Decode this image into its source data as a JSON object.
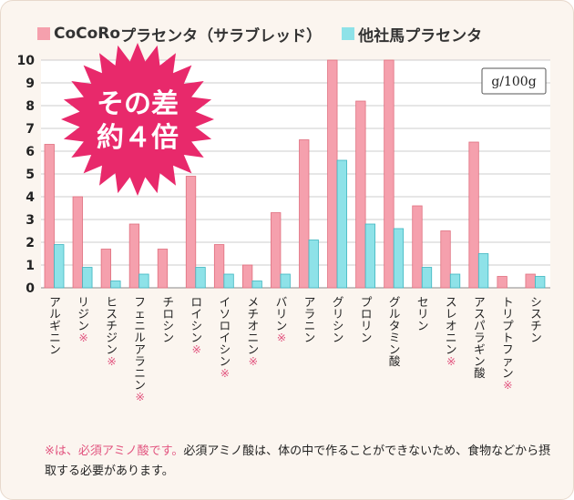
{
  "chart_data": {
    "type": "bar",
    "unit": "g/100g",
    "ylim": [
      0,
      10
    ],
    "yticks": [
      0,
      1,
      2,
      3,
      4,
      5,
      6,
      7,
      8,
      9,
      10
    ],
    "grid": true,
    "legend_position": "top",
    "categories": [
      "アルギニン",
      "リジン",
      "ヒスチジン",
      "フェニルアラニン",
      "チロシン",
      "ロイシン",
      "イソロイシン",
      "メチオニン",
      "バリン",
      "アラニン",
      "グリシン",
      "プロリン",
      "グルタミン酸",
      "セリン",
      "スレオニン",
      "アスパラギン酸",
      "トリプトファン",
      "シスチン"
    ],
    "essential": [
      false,
      true,
      true,
      true,
      false,
      true,
      true,
      true,
      true,
      false,
      false,
      false,
      false,
      false,
      true,
      false,
      true,
      false
    ],
    "series": [
      {
        "name": "CoCoRo プラセンタ（サラブレッド）",
        "color": "#f5a0ad",
        "stroke": "#e0707f",
        "values": [
          6.3,
          4.0,
          1.7,
          2.8,
          1.7,
          4.9,
          1.9,
          1.0,
          3.3,
          6.5,
          10,
          8.2,
          10,
          3.6,
          2.5,
          6.4,
          0.5,
          0.6
        ]
      },
      {
        "name": "他社馬プラセンタ",
        "color": "#8ee2e8",
        "stroke": "#3fb6c0",
        "values": [
          1.9,
          0.9,
          0.3,
          0.6,
          0.0,
          0.9,
          0.6,
          0.3,
          0.6,
          2.1,
          5.6,
          2.8,
          2.6,
          0.9,
          0.6,
          1.5,
          0.0,
          0.5
        ]
      }
    ]
  },
  "legend": {
    "series1_part1": "CoCoRo",
    "series1_part2": " プラセンタ（サラブレッド）",
    "series2": "他社馬プラセンタ"
  },
  "badge": {
    "line1": "その差",
    "line2": "約４倍",
    "color": "#e8296b"
  },
  "unit_label": "g/100g",
  "essential_mark": "※",
  "note": {
    "highlight": "※は、必須アミノ酸です。",
    "text": "必須アミノ酸は、体の中で作ることができないため、食物などから摂取する必要があります。"
  },
  "colors": {
    "accent": "#e2547f",
    "background": "#fbf5ef",
    "grid": "#cccccc"
  }
}
